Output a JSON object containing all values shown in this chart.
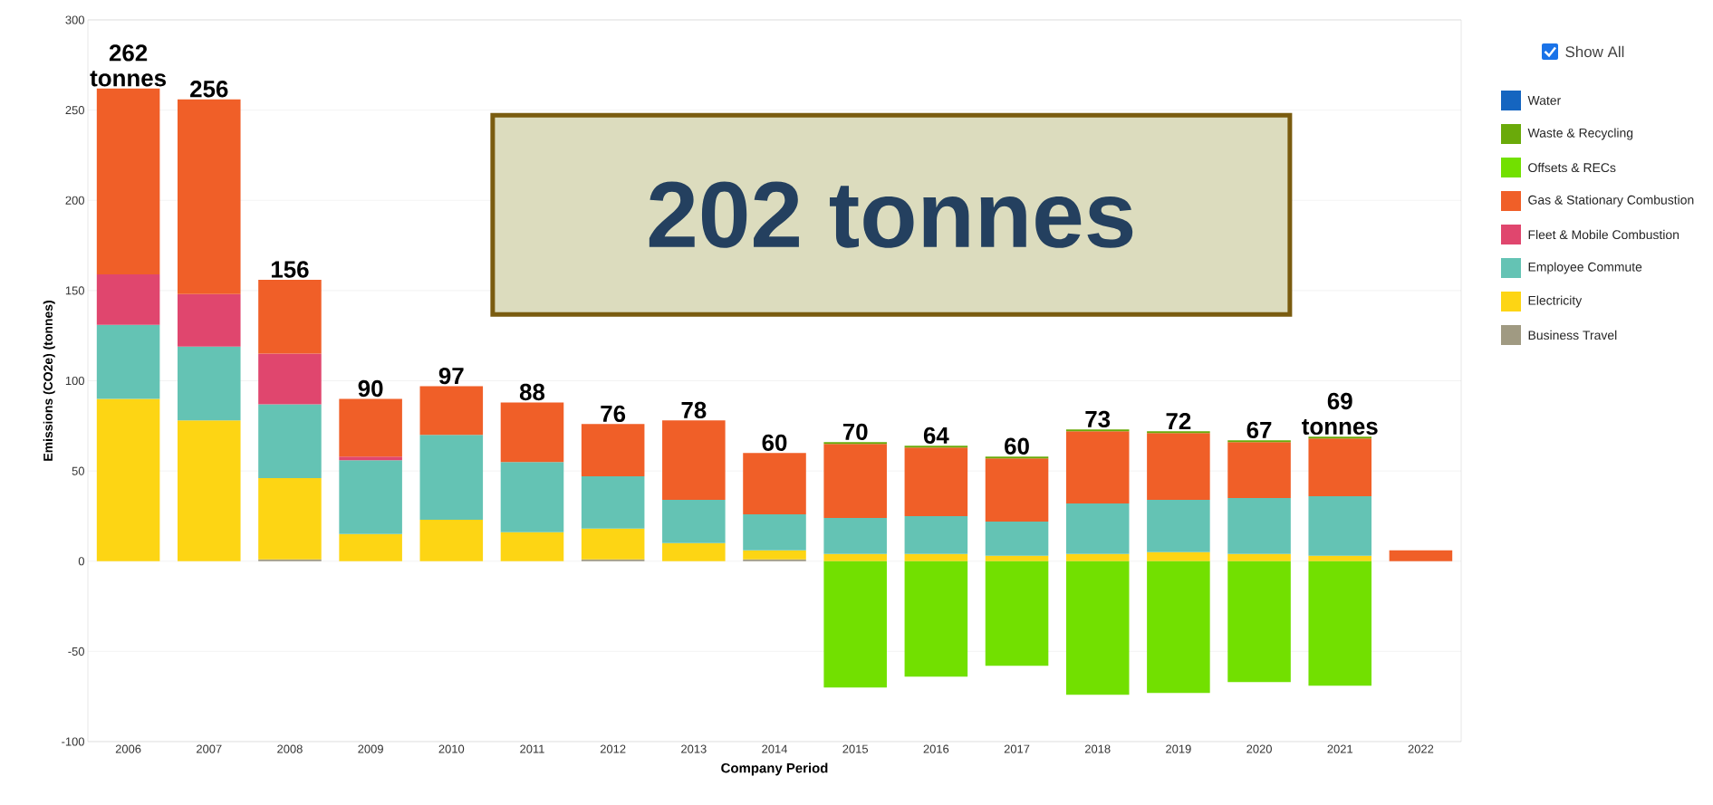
{
  "chart_data": {
    "type": "bar",
    "stacked": true,
    "categories": [
      "2006",
      "2007",
      "2008",
      "2009",
      "2010",
      "2011",
      "2012",
      "2013",
      "2014",
      "2015",
      "2016",
      "2017",
      "2018",
      "2019",
      "2020",
      "2021",
      "2022"
    ],
    "series": [
      {
        "name": "Business Travel",
        "color": "#a09a82",
        "values": [
          null,
          null,
          1,
          null,
          null,
          null,
          1,
          null,
          1,
          null,
          null,
          null,
          null,
          null,
          null,
          null,
          null
        ]
      },
      {
        "name": "Electricity",
        "color": "#fdd514",
        "values": [
          90,
          78,
          45,
          15,
          23,
          16,
          17,
          10,
          5,
          4,
          4,
          3,
          4,
          5,
          4,
          3,
          null
        ]
      },
      {
        "name": "Employee Commute",
        "color": "#64c3b4",
        "values": [
          41,
          41,
          41,
          41,
          47,
          39,
          29,
          24,
          20,
          20,
          21,
          19,
          28,
          29,
          31,
          33,
          null
        ]
      },
      {
        "name": "Fleet & Mobile Combustion",
        "color": "#e0466e",
        "values": [
          28,
          29,
          28,
          2,
          null,
          null,
          null,
          null,
          null,
          null,
          null,
          null,
          null,
          null,
          null,
          null,
          null
        ]
      },
      {
        "name": "Gas & Stationary Combustion",
        "color": "#f05f28",
        "values": [
          103,
          108,
          41,
          32,
          27,
          33,
          29,
          44,
          34,
          41,
          38,
          35,
          40,
          37,
          31,
          32,
          6
        ]
      },
      {
        "name": "Offsets & RECs",
        "color": "#72e000",
        "values": [
          null,
          null,
          null,
          null,
          null,
          null,
          null,
          null,
          null,
          -70,
          -64,
          -58,
          -74,
          -73,
          -67,
          -69,
          null
        ]
      },
      {
        "name": "Waste & Recycling",
        "color": "#6aaa0a",
        "values": [
          null,
          null,
          null,
          null,
          null,
          null,
          null,
          null,
          null,
          1,
          1,
          1,
          1,
          1,
          1,
          1,
          null
        ]
      },
      {
        "name": "Water",
        "color": "#1565c0",
        "values": [
          null,
          null,
          null,
          null,
          null,
          null,
          null,
          null,
          null,
          null,
          null,
          null,
          null,
          null,
          null,
          null,
          null
        ]
      }
    ],
    "xlabel": "Company Period",
    "ylabel": "Emissions (CO2e) (tonnes)",
    "ylim": [
      -100,
      300
    ],
    "yticks": [
      -100,
      -50,
      0,
      50,
      100,
      150,
      200,
      250,
      300
    ],
    "grid": "y",
    "legend": "right",
    "annotations": [
      {
        "text": "262 tonnes",
        "x": "2006",
        "y": 262
      },
      {
        "text": "256",
        "x": "2007",
        "y": 256
      },
      {
        "text": "156",
        "x": "2008",
        "y": 156
      },
      {
        "text": "90",
        "x": "2009",
        "y": 90
      },
      {
        "text": "97",
        "x": "2010",
        "y": 97
      },
      {
        "text": "88",
        "x": "2011",
        "y": 88
      },
      {
        "text": "76",
        "x": "2012",
        "y": 76
      },
      {
        "text": "78",
        "x": "2013",
        "y": 78
      },
      {
        "text": "60",
        "x": "2014",
        "y": 60
      },
      {
        "text": "70",
        "x": "2015",
        "y": 66
      },
      {
        "text": "64",
        "x": "2016",
        "y": 64
      },
      {
        "text": "60",
        "x": "2017",
        "y": 58
      },
      {
        "text": "73",
        "x": "2018",
        "y": 73
      },
      {
        "text": "72",
        "x": "2019",
        "y": 72
      },
      {
        "text": "67",
        "x": "2020",
        "y": 67
      },
      {
        "text": "69 tonnes",
        "x": "2021",
        "y": 69
      },
      "202 tonnes",
      "Show All"
    ]
  }
}
